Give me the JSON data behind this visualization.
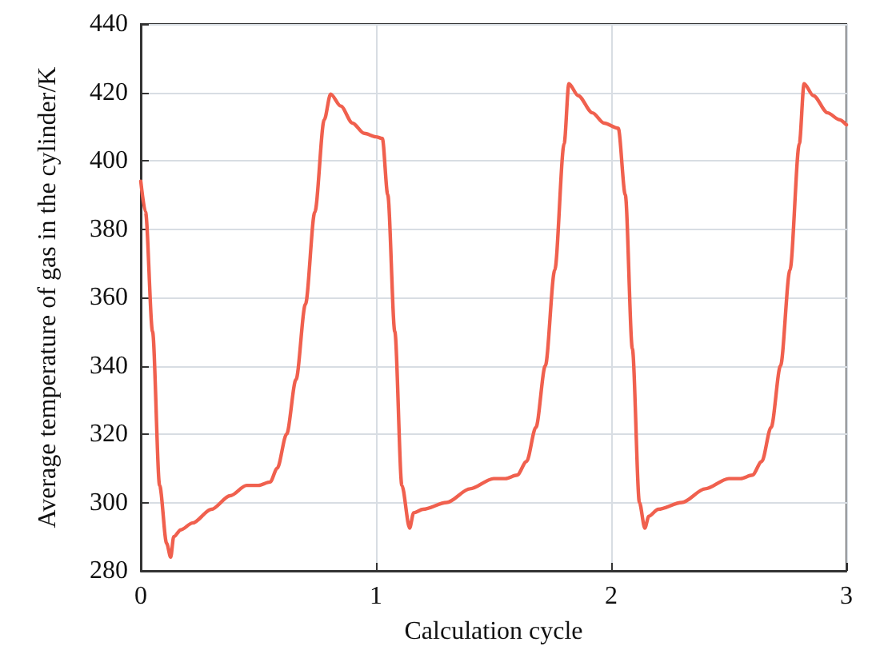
{
  "chart_data": {
    "type": "line",
    "xlabel": "Calculation cycle",
    "ylabel": "Average temperature of gas in the cylinder/K",
    "x": [
      0,
      0.02,
      0.05,
      0.08,
      0.11,
      0.127,
      0.14,
      0.17,
      0.22,
      0.3,
      0.38,
      0.45,
      0.5,
      0.55,
      0.58,
      0.62,
      0.66,
      0.7,
      0.74,
      0.78,
      0.807,
      0.85,
      0.9,
      0.95,
      1.0,
      1.027,
      1.05,
      1.08,
      1.11,
      1.143,
      1.16,
      1.2,
      1.3,
      1.4,
      1.5,
      1.55,
      1.6,
      1.64,
      1.68,
      1.72,
      1.76,
      1.8,
      1.82,
      1.86,
      1.92,
      1.97,
      2.03,
      2.06,
      2.09,
      2.12,
      2.143,
      2.16,
      2.2,
      2.3,
      2.4,
      2.5,
      2.55,
      2.6,
      2.64,
      2.68,
      2.72,
      2.76,
      2.8,
      2.82,
      2.86,
      2.92,
      2.97,
      3.0
    ],
    "series": [
      {
        "color": "#f0604e",
        "values": [
          394,
          385,
          350,
          305,
          288,
          284,
          290,
          292,
          294,
          298,
          302,
          305,
          305,
          306,
          310,
          320,
          336,
          358,
          385,
          412,
          419.5,
          416,
          411,
          408,
          407,
          406.5,
          390,
          350,
          305,
          292.5,
          297,
          298,
          300,
          304,
          307,
          307,
          308,
          312,
          322,
          340,
          368,
          405,
          422.5,
          419,
          414,
          411,
          409.5,
          390,
          345,
          300,
          292.5,
          296,
          298,
          300,
          304,
          307,
          307,
          308,
          312,
          322,
          340,
          368,
          405,
          422.5,
          419,
          414,
          412,
          410.5
        ]
      }
    ],
    "xlim": [
      0,
      3
    ],
    "xticks": [
      0,
      1,
      2,
      3
    ],
    "ylim": [
      280,
      440
    ],
    "yticks": [
      280,
      300,
      320,
      340,
      360,
      380,
      400,
      420,
      440
    ],
    "grid": true,
    "marker": "none",
    "line_style": "solid"
  }
}
